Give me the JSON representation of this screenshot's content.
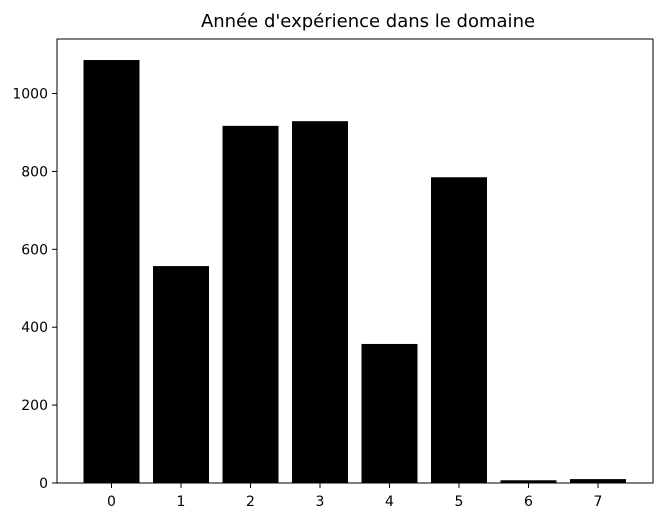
{
  "chart_data": {
    "type": "bar",
    "title": "Année d'expérience dans le domaine",
    "xlabel": "",
    "ylabel": "",
    "categories": [
      "0",
      "1",
      "2",
      "3",
      "4",
      "5",
      "6",
      "7"
    ],
    "values": [
      1086,
      557,
      917,
      929,
      357,
      785,
      7,
      10
    ],
    "ylim": [
      0,
      1140
    ],
    "yticks": [
      0,
      200,
      400,
      600,
      800,
      1000
    ],
    "bar_color": "#000000",
    "grid": false,
    "legend": "none"
  }
}
